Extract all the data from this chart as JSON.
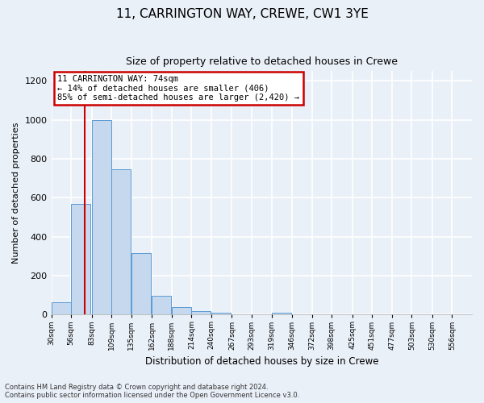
{
  "title": "11, CARRINGTON WAY, CREWE, CW1 3YE",
  "subtitle": "Size of property relative to detached houses in Crewe",
  "xlabel": "Distribution of detached houses by size in Crewe",
  "ylabel": "Number of detached properties",
  "bin_labels": [
    "30sqm",
    "56sqm",
    "83sqm",
    "109sqm",
    "135sqm",
    "162sqm",
    "188sqm",
    "214sqm",
    "240sqm",
    "267sqm",
    "293sqm",
    "319sqm",
    "346sqm",
    "372sqm",
    "398sqm",
    "425sqm",
    "451sqm",
    "477sqm",
    "503sqm",
    "530sqm",
    "556sqm"
  ],
  "bar_values": [
    65,
    570,
    1000,
    745,
    315,
    95,
    40,
    20,
    10,
    0,
    0,
    10,
    0,
    0,
    0,
    0,
    0,
    0,
    0,
    0,
    0
  ],
  "bar_color": "#c5d8ed",
  "bar_edge_color": "#5b9bd5",
  "property_value": 74,
  "annotation_line1": "11 CARRINGTON WAY: 74sqm",
  "annotation_line2": "← 14% of detached houses are smaller (406)",
  "annotation_line3": "85% of semi-detached houses are larger (2,420) →",
  "annotation_box_color": "#ffffff",
  "annotation_box_edge": "#cc0000",
  "ylim": [
    0,
    1250
  ],
  "yticks": [
    0,
    200,
    400,
    600,
    800,
    1000,
    1200
  ],
  "footer_line1": "Contains HM Land Registry data © Crown copyright and database right 2024.",
  "footer_line2": "Contains public sector information licensed under the Open Government Licence v3.0.",
  "background_color": "#eaf0f8",
  "plot_bg_color": "#eaf0f8",
  "grid_color": "#ffffff",
  "title_fontsize": 11,
  "subtitle_fontsize": 9
}
